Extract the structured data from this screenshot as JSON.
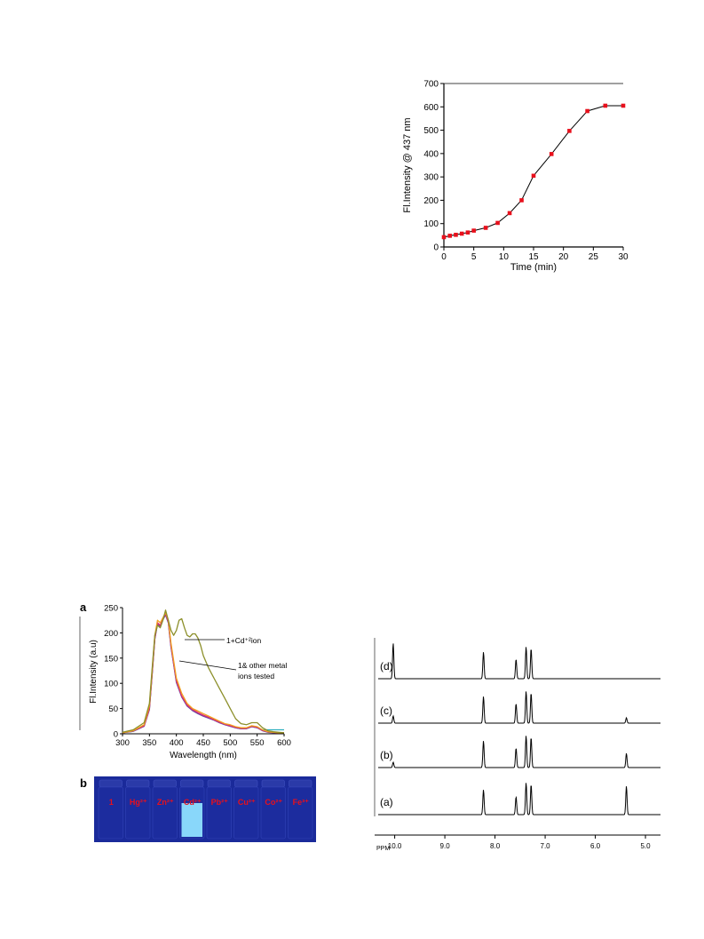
{
  "chart_data": [
    {
      "type": "line",
      "xlabel": "Time (min)",
      "ylabel": "Fl.Intensity @ 437 nm",
      "xlim": [
        0,
        30
      ],
      "ylim": [
        0,
        700
      ],
      "xticks": [
        0,
        5,
        10,
        15,
        20,
        25,
        30
      ],
      "yticks": [
        0,
        100,
        200,
        300,
        400,
        500,
        600,
        700
      ],
      "marker_color": "#e8101c",
      "line_color": "#000000",
      "x": [
        0,
        1,
        2,
        3,
        4,
        5,
        7,
        9,
        11,
        13,
        15,
        18,
        21,
        24,
        27,
        30
      ],
      "y": [
        42,
        48,
        52,
        57,
        62,
        70,
        82,
        103,
        145,
        200,
        305,
        398,
        497,
        582,
        605,
        605
      ]
    },
    {
      "type": "line",
      "panel_label": "a",
      "xlabel": "Wavelength (nm)",
      "ylabel": "Fl.Intensity (a.u)",
      "xlim": [
        300,
        600
      ],
      "ylim": [
        0,
        250
      ],
      "xticks": [
        300,
        350,
        400,
        450,
        500,
        550,
        600
      ],
      "yticks": [
        0,
        50,
        100,
        150,
        200,
        250
      ],
      "annotations": [
        {
          "text": "1+Cd⁺²ion"
        },
        {
          "text": "1& other metal"
        },
        {
          "text": "ions tested"
        }
      ],
      "series": [
        {
          "color": "#8c8f2a",
          "x": [
            300,
            320,
            340,
            350,
            355,
            360,
            365,
            370,
            375,
            380,
            385,
            390,
            395,
            400,
            405,
            410,
            415,
            420,
            425,
            430,
            435,
            440,
            445,
            450,
            460,
            470,
            480,
            490,
            500,
            510,
            520,
            530,
            540,
            550,
            560,
            570,
            580,
            590,
            600
          ],
          "y": [
            3,
            8,
            22,
            60,
            130,
            195,
            215,
            210,
            225,
            245,
            225,
            205,
            195,
            205,
            225,
            228,
            210,
            195,
            192,
            198,
            198,
            190,
            175,
            155,
            130,
            110,
            90,
            70,
            50,
            30,
            20,
            18,
            22,
            22,
            12,
            6,
            4,
            3,
            2
          ]
        },
        {
          "color": "#f0a020",
          "x": [
            300,
            320,
            340,
            350,
            355,
            360,
            365,
            370,
            375,
            380,
            385,
            390,
            395,
            400,
            410,
            420,
            430,
            440,
            450,
            460,
            470,
            480,
            490,
            500,
            510,
            520,
            530,
            540,
            550,
            560,
            570,
            580,
            590,
            600
          ],
          "y": [
            2,
            6,
            18,
            55,
            125,
            195,
            225,
            220,
            230,
            240,
            225,
            180,
            145,
            110,
            80,
            60,
            50,
            45,
            40,
            35,
            30,
            25,
            20,
            18,
            14,
            12,
            12,
            16,
            14,
            8,
            4,
            3,
            2,
            2
          ]
        },
        {
          "color": "#e0306c",
          "x": [
            300,
            320,
            340,
            350,
            355,
            360,
            365,
            370,
            375,
            380,
            385,
            390,
            395,
            400,
            410,
            420,
            430,
            440,
            450,
            460,
            470,
            480,
            490,
            500,
            510,
            520,
            530,
            540,
            550,
            560,
            570,
            580,
            590,
            600
          ],
          "y": [
            2,
            6,
            16,
            50,
            120,
            190,
            220,
            215,
            228,
            238,
            222,
            175,
            140,
            105,
            75,
            57,
            48,
            42,
            37,
            33,
            28,
            23,
            19,
            16,
            13,
            11,
            11,
            15,
            13,
            7,
            4,
            3,
            2,
            2
          ]
        },
        {
          "color": "#7a3ea0",
          "x": [
            300,
            320,
            340,
            350,
            355,
            360,
            365,
            370,
            375,
            380,
            385,
            390,
            395,
            400,
            410,
            420,
            430,
            440,
            450,
            460,
            470,
            480,
            490,
            500,
            510,
            520,
            530,
            540,
            550,
            560,
            570,
            580,
            590,
            600
          ],
          "y": [
            2,
            5,
            15,
            48,
            118,
            188,
            218,
            213,
            226,
            236,
            220,
            172,
            138,
            102,
            73,
            55,
            46,
            40,
            35,
            31,
            27,
            22,
            18,
            15,
            12,
            10,
            10,
            14,
            12,
            6,
            3,
            2,
            2,
            2
          ]
        },
        {
          "color": "#30b0c0",
          "x": [
            300,
            320,
            340,
            350,
            355,
            360,
            365,
            370,
            375,
            380,
            385,
            390,
            395,
            400,
            410,
            420,
            430,
            440,
            450,
            460,
            470,
            480,
            490,
            500,
            510,
            520,
            530,
            540,
            550,
            560,
            570,
            580,
            590,
            600
          ],
          "y": [
            2,
            5,
            15,
            48,
            118,
            188,
            218,
            213,
            226,
            236,
            220,
            172,
            138,
            102,
            73,
            55,
            46,
            40,
            35,
            31,
            27,
            22,
            18,
            15,
            12,
            10,
            10,
            14,
            12,
            8,
            8,
            8,
            8,
            8
          ]
        }
      ]
    },
    {
      "type": "line",
      "xlabel": "PPM",
      "xlim": [
        10.4,
        4.7
      ],
      "xticks": [
        10.0,
        9.0,
        8.0,
        7.0,
        6.0,
        5.0
      ],
      "xtick_labels": [
        "10.0",
        "9.0",
        "8.0",
        "7.0",
        "6.0",
        "5.0"
      ],
      "peak_positions_ppm": [
        10.03,
        8.23,
        7.58,
        7.38,
        7.28,
        5.38
      ],
      "series": [
        {
          "name": "(d)",
          "peak_heights": [
            1.0,
            0.75,
            0.55,
            0.9,
            0.85,
            0.0
          ]
        },
        {
          "name": "(c)",
          "peak_heights": [
            0.2,
            0.75,
            0.55,
            0.9,
            0.85,
            0.15
          ]
        },
        {
          "name": "(b)",
          "peak_heights": [
            0.15,
            0.75,
            0.55,
            0.9,
            0.85,
            0.4
          ]
        },
        {
          "name": "(a)",
          "peak_heights": [
            0.0,
            0.7,
            0.5,
            0.9,
            0.85,
            0.8
          ]
        }
      ]
    }
  ],
  "photo": {
    "panel_label": "b",
    "vial_labels": [
      "1",
      "Hg²⁺",
      "Zn²⁺",
      "Cd²⁺",
      "Pb²⁺",
      "Cu²⁺",
      "Co²⁺",
      "Fe³⁺"
    ],
    "label_color": "#e8101c",
    "background_color": "#1a2a9a",
    "glow_color": "#8fe0ff",
    "glowing_vial_index": 3
  }
}
